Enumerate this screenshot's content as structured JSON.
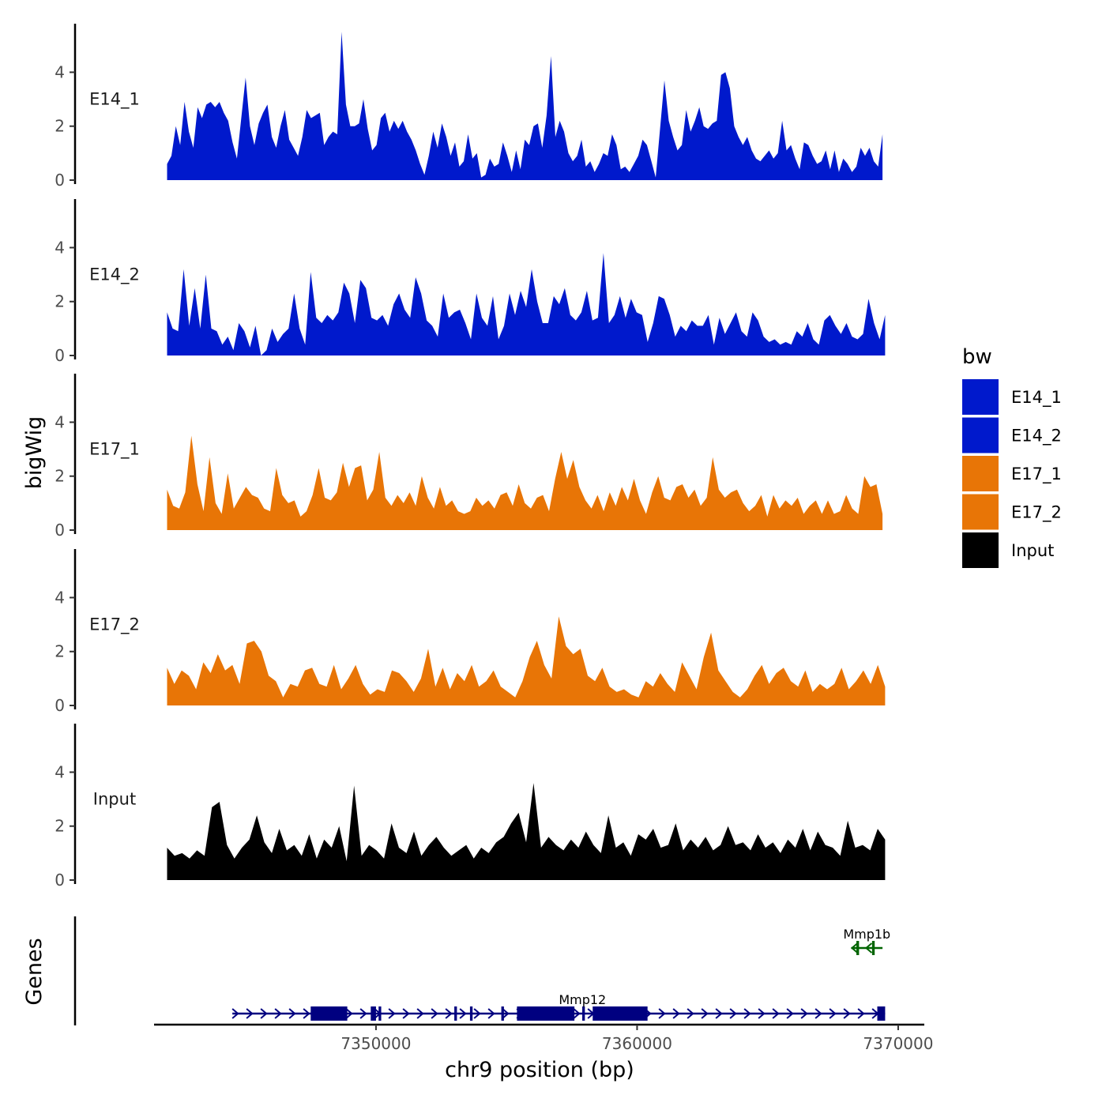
{
  "chart_data": {
    "type": "area",
    "xlabel": "chr9 position (bp)",
    "ylabel": "bigWig",
    "genes_label": "Genes",
    "xlim": [
      7341500,
      7371000
    ],
    "ylim": [
      0,
      5.8
    ],
    "x_ticks": [
      {
        "value": 7350000,
        "label": "7350000"
      },
      {
        "value": 7360000,
        "label": "7360000"
      },
      {
        "value": 7370000,
        "label": "7370000"
      }
    ],
    "y_ticks": [
      {
        "value": 0,
        "label": "0"
      },
      {
        "value": 2,
        "label": "2"
      },
      {
        "value": 4,
        "label": "4"
      }
    ],
    "legend": {
      "title": "bw",
      "entries": [
        {
          "name": "E14_1",
          "color": "#0019CC"
        },
        {
          "name": "E14_2",
          "color": "#0019CC"
        },
        {
          "name": "E17_1",
          "color": "#E87506"
        },
        {
          "name": "E17_2",
          "color": "#E87506"
        },
        {
          "name": "Input",
          "color": "#000000"
        }
      ]
    },
    "series": [
      {
        "name": "E14_1",
        "color": "#0019CC",
        "x_start": 7342000,
        "x_end": 7369400,
        "values": [
          0.6,
          0.9,
          2,
          1.3,
          2.9,
          1.8,
          1.2,
          2.7,
          2.3,
          2.8,
          2.9,
          2.7,
          2.9,
          2.5,
          2.2,
          1.4,
          0.8,
          2.3,
          3.8,
          2,
          1.3,
          2.1,
          2.5,
          2.8,
          1.6,
          1.2,
          2,
          2.6,
          1.5,
          1.2,
          0.9,
          1.6,
          2.6,
          2.3,
          2.4,
          2.5,
          1.3,
          1.6,
          1.8,
          1.7,
          5.5,
          2.8,
          2,
          2,
          2.1,
          3,
          1.9,
          1.1,
          1.3,
          2.3,
          2.5,
          1.8,
          2.2,
          1.9,
          2.2,
          1.8,
          1.5,
          1.1,
          0.6,
          0.2,
          0.9,
          1.8,
          1.2,
          2.1,
          1.6,
          0.9,
          1.4,
          0.5,
          0.7,
          1.7,
          0.8,
          1,
          0.1,
          0.2,
          0.8,
          0.5,
          0.6,
          1.4,
          0.9,
          0.3,
          1.1,
          0.4,
          1.5,
          1.3,
          2,
          2.1,
          1.2,
          2.4,
          4.6,
          1.6,
          2.2,
          1.8,
          1,
          0.7,
          0.9,
          1.5,
          0.5,
          0.7,
          0.3,
          0.6,
          1,
          0.9,
          1.7,
          1.3,
          0.4,
          0.5,
          0.3,
          0.6,
          0.9,
          1.5,
          1.3,
          0.7,
          0.1,
          1.9,
          3.7,
          2.2,
          1.6,
          1.1,
          1.3,
          2.6,
          1.8,
          2.2,
          2.7,
          2,
          1.9,
          2.1,
          2.2,
          3.9,
          4,
          3.4,
          2,
          1.6,
          1.3,
          1.6,
          1.1,
          0.8,
          0.7,
          0.9,
          1.1,
          0.8,
          1,
          2.2,
          1.1,
          1.3,
          0.8,
          0.4,
          1.4,
          1.3,
          0.9,
          0.6,
          0.7,
          1.1,
          0.4,
          1.1,
          0.3,
          0.8,
          0.6,
          0.3,
          0.5,
          1.2,
          0.9,
          1.2,
          0.7,
          0.5,
          1.7
        ]
      },
      {
        "name": "E14_2",
        "color": "#0019CC",
        "x_start": 7342000,
        "x_end": 7369500,
        "values": [
          1.6,
          1,
          0.9,
          3.2,
          1.1,
          2.5,
          1,
          3,
          1,
          0.9,
          0.4,
          0.7,
          0.2,
          1.2,
          0.9,
          0.3,
          1.1,
          0,
          0.2,
          1,
          0.5,
          0.8,
          1,
          2.3,
          1,
          0.4,
          3.1,
          1.4,
          1.2,
          1.5,
          1.3,
          1.6,
          2.7,
          2.3,
          1.2,
          2.8,
          2.5,
          1.4,
          1.3,
          1.5,
          1.1,
          1.9,
          2.3,
          1.7,
          1.4,
          2.9,
          2.3,
          1.3,
          1.1,
          0.7,
          2.3,
          1.4,
          1.6,
          1.7,
          1.2,
          0.6,
          2.3,
          1.4,
          1.1,
          2.2,
          0.6,
          1.1,
          2.3,
          1.5,
          2.4,
          1.8,
          3.2,
          2,
          1.2,
          1.2,
          2.2,
          1.9,
          2.5,
          1.5,
          1.3,
          1.6,
          2.4,
          1.3,
          1.4,
          3.8,
          1.2,
          1.5,
          2.2,
          1.4,
          2.1,
          1.6,
          1.5,
          0.5,
          1.2,
          2.2,
          2.1,
          1.5,
          0.7,
          1.1,
          0.9,
          1.3,
          1.1,
          1.1,
          1.5,
          0.4,
          1.4,
          0.8,
          1.2,
          1.6,
          0.9,
          0.7,
          1.6,
          1.3,
          0.7,
          0.5,
          0.6,
          0.4,
          0.5,
          0.4,
          0.9,
          0.7,
          1.2,
          0.6,
          0.4,
          1.3,
          1.5,
          1.1,
          0.8,
          1.2,
          0.7,
          0.6,
          0.8,
          2.1,
          1.2,
          0.6,
          1.5
        ]
      },
      {
        "name": "E17_1",
        "color": "#E87506",
        "x_start": 7342000,
        "x_end": 7369400,
        "values": [
          1.5,
          0.9,
          0.8,
          1.4,
          3.5,
          1.7,
          0.7,
          2.7,
          1,
          0.6,
          2.1,
          0.8,
          1.2,
          1.6,
          1.3,
          1.2,
          0.8,
          0.7,
          2.3,
          1.3,
          1,
          1.1,
          0.5,
          0.7,
          1.3,
          2.3,
          1.2,
          1.1,
          1.4,
          2.5,
          1.6,
          2.3,
          2.4,
          1.1,
          1.5,
          2.9,
          1.2,
          0.9,
          1.3,
          1,
          1.4,
          0.9,
          2,
          1.2,
          0.8,
          1.6,
          0.9,
          1.1,
          0.7,
          0.6,
          0.7,
          1.2,
          0.9,
          1.1,
          0.8,
          1.3,
          1.4,
          0.9,
          1.7,
          1,
          0.8,
          1.2,
          1.3,
          0.7,
          1.9,
          2.9,
          1.9,
          2.6,
          1.6,
          1.1,
          0.8,
          1.3,
          0.7,
          1.4,
          0.9,
          1.6,
          1.1,
          1.9,
          1.1,
          0.6,
          1.4,
          2,
          1.2,
          1.1,
          1.6,
          1.7,
          1.2,
          1.5,
          0.9,
          1.2,
          2.7,
          1.5,
          1.2,
          1.4,
          1.5,
          1,
          0.7,
          0.9,
          1.3,
          0.5,
          1.3,
          0.8,
          1.1,
          0.9,
          1.2,
          0.6,
          0.9,
          1.1,
          0.6,
          1.1,
          0.6,
          0.7,
          1.3,
          0.8,
          0.6,
          2,
          1.6,
          1.7,
          0.6
        ]
      },
      {
        "name": "E17_2",
        "color": "#E87506",
        "x_start": 7342000,
        "x_end": 7369500,
        "values": [
          1.4,
          0.8,
          1.3,
          1.1,
          0.6,
          1.6,
          1.2,
          1.9,
          1.3,
          1.5,
          0.8,
          2.3,
          2.4,
          2,
          1.1,
          0.9,
          0.3,
          0.8,
          0.7,
          1.3,
          1.4,
          0.8,
          0.7,
          1.5,
          0.6,
          1,
          1.5,
          0.8,
          0.4,
          0.6,
          0.5,
          1.3,
          1.2,
          0.9,
          0.5,
          1,
          2.1,
          0.7,
          1.4,
          0.6,
          1.2,
          0.9,
          1.5,
          0.7,
          0.9,
          1.3,
          0.7,
          0.5,
          0.3,
          0.9,
          1.8,
          2.4,
          1.5,
          1,
          3.3,
          2.2,
          1.9,
          2.1,
          1.1,
          0.9,
          1.4,
          0.7,
          0.5,
          0.6,
          0.4,
          0.3,
          0.9,
          0.7,
          1.2,
          0.8,
          0.5,
          1.6,
          1.1,
          0.6,
          1.8,
          2.7,
          1.3,
          0.9,
          0.5,
          0.3,
          0.6,
          1.1,
          1.5,
          0.8,
          1.2,
          1.4,
          0.9,
          0.7,
          1.3,
          0.5,
          0.8,
          0.6,
          0.8,
          1.4,
          0.6,
          0.9,
          1.3,
          0.8,
          1.5,
          0.7
        ]
      },
      {
        "name": "Input",
        "color": "#000000",
        "x_start": 7342000,
        "x_end": 7369500,
        "values": [
          1.2,
          0.9,
          1,
          0.8,
          1.1,
          0.9,
          2.7,
          2.9,
          1.3,
          0.8,
          1.2,
          1.5,
          2.4,
          1.4,
          1,
          1.9,
          1.1,
          1.3,
          0.9,
          1.7,
          0.8,
          1.5,
          1.2,
          2,
          0.7,
          3.5,
          0.9,
          1.3,
          1.1,
          0.8,
          2.1,
          1.2,
          1,
          1.8,
          0.9,
          1.3,
          1.6,
          1.2,
          0.9,
          1.1,
          1.3,
          0.8,
          1.2,
          1,
          1.4,
          1.6,
          2.1,
          2.5,
          1.4,
          3.6,
          1.2,
          1.6,
          1.3,
          1.1,
          1.5,
          1.2,
          1.8,
          1.3,
          1,
          2.4,
          1.2,
          1.4,
          0.9,
          1.7,
          1.5,
          1.9,
          1.2,
          1.3,
          2.1,
          1.1,
          1.5,
          1.2,
          1.6,
          1.1,
          1.3,
          2,
          1.3,
          1.4,
          1.1,
          1.7,
          1.2,
          1.4,
          1,
          1.5,
          1.2,
          1.9,
          1.1,
          1.8,
          1.3,
          1.2,
          0.9,
          2.2,
          1.2,
          1.3,
          1.1,
          1.9,
          1.5
        ]
      }
    ],
    "genes": [
      {
        "name": "Mmp12",
        "color": "#000080",
        "strand": "+",
        "start": 7344500,
        "end": 7369500,
        "exons": [
          [
            7347500,
            7348900
          ],
          [
            7349800,
            7350000
          ],
          [
            7350100,
            7350200
          ],
          [
            7353000,
            7353100
          ],
          [
            7353600,
            7353700
          ],
          [
            7354800,
            7354900
          ],
          [
            7355400,
            7357600
          ],
          [
            7357900,
            7358000
          ],
          [
            7358300,
            7360400
          ],
          [
            7369200,
            7369500
          ]
        ]
      },
      {
        "name": "Mmp1b",
        "color": "#006400",
        "strand": "-",
        "start": 7368200,
        "end": 7369400,
        "exons": [
          [
            7368400,
            7368500
          ],
          [
            7369000,
            7369100
          ]
        ]
      }
    ]
  }
}
